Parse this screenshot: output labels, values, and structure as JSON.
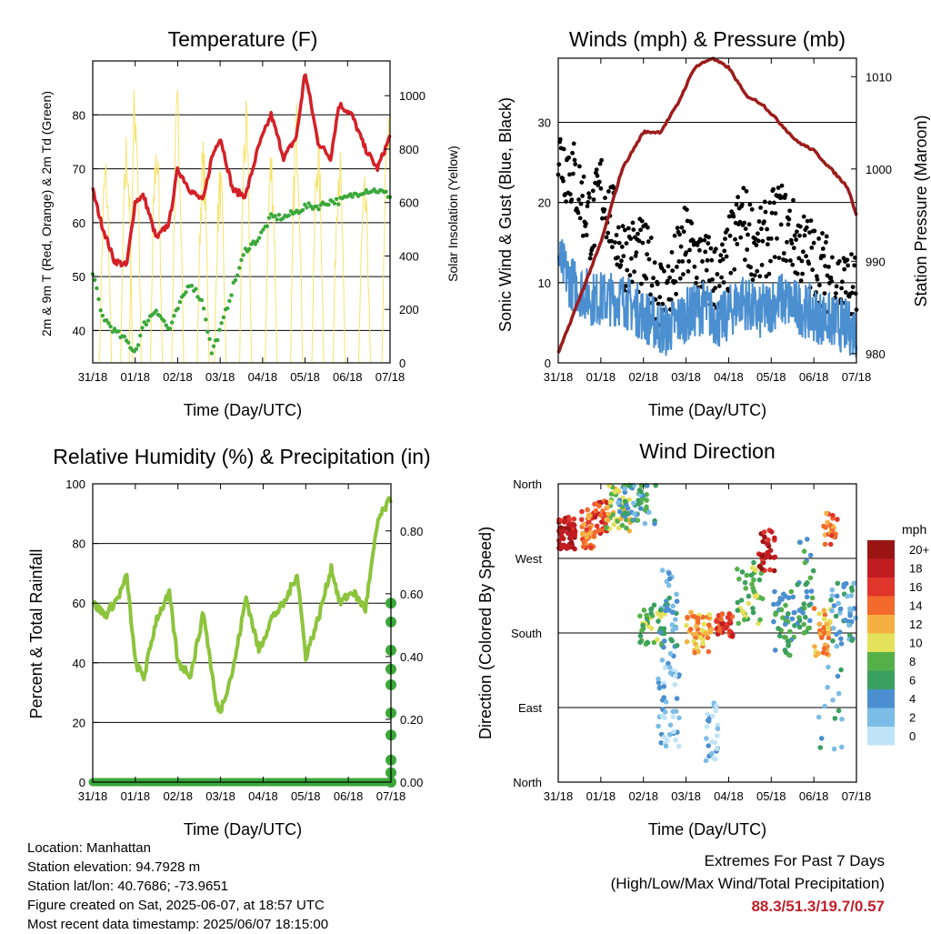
{
  "charts": {
    "temperature": {
      "title": "Temperature (F)",
      "xlabel": "Time (Day/UTC)",
      "ylabel_left": "2m & 9m T (Red, Orange) & 2m Td (Green)",
      "ylabel_right": "Solar Insolation (Yellow)"
    },
    "winds": {
      "title": "Winds (mph) & Pressure (mb)",
      "xlabel": "Time (Day/UTC)",
      "ylabel_left": "Sonic Wind & Gust (Blue, Black)",
      "ylabel_right": "Station Pressure (Maroon)"
    },
    "humidity": {
      "title": "Relative Humidity (%) & Precipitation (in)",
      "xlabel": "Time (Day/UTC)",
      "ylabel_left": "Percent & Total Rainfall"
    },
    "direction": {
      "title": "Wind Direction",
      "xlabel": "Time (Day/UTC)",
      "ylabel_left": "Direction (Colored By Speed)",
      "legend_title": "mph"
    }
  },
  "footer": {
    "location": "Location: Manhattan",
    "elevation": "Station elevation: 94.7928 m",
    "latlon": "Station lat/lon: 40.7686; -73.9651",
    "created": "Figure created on Sat, 2025-06-07, at 18:57 UTC",
    "recent": "Most recent data timestamp: 2025/06/07 18:15:00"
  },
  "extremes": {
    "line1": "Extremes For Past 7 Days",
    "line2": "(High/Low/Max Wind/Total Precipitation)",
    "values": "88.3/51.3/19.7/0.57"
  },
  "colors": {
    "temp_red": "#d42027",
    "dewpoint_green": "#3aa83a",
    "solar_yellow": "#f7e36a",
    "gust_black": "#000000",
    "wind_blue": "#4b8fd0",
    "pressure_maroon": "#9c1c1c",
    "rh_green": "#8cc43c",
    "precip_green": "#3aa83a",
    "speed_scale": [
      "#bfe4f7",
      "#7bbde6",
      "#4b8fd0",
      "#3aa060",
      "#55b04a",
      "#e4e15a",
      "#f5b044",
      "#f26a2c",
      "#e0352b",
      "#c01c22",
      "#9a1414"
    ]
  },
  "chart_data": [
    {
      "type": "line",
      "panel": "temperature",
      "x_ticks": [
        "31/18",
        "01/18",
        "02/18",
        "03/18",
        "04/18",
        "05/18",
        "06/18",
        "07/18"
      ],
      "ylim_left": [
        34,
        90
      ],
      "ylim_right": [
        0,
        1130
      ],
      "y_ticks_left": [
        "40",
        "50",
        "60",
        "70",
        "80"
      ],
      "y_ticks_right": [
        "0",
        "200",
        "400",
        "600",
        "800",
        "1000"
      ],
      "series": [
        {
          "color": "temp_red",
          "x": [
            0,
            0.2,
            0.5,
            0.8,
            1.0,
            1.2,
            1.5,
            1.8,
            2.0,
            2.3,
            2.6,
            2.8,
            3.0,
            3.3,
            3.6,
            3.9,
            4.2,
            4.5,
            4.8,
            5.0,
            5.3,
            5.6,
            5.8,
            6.1,
            6.4,
            6.7,
            7.0
          ],
          "values": [
            66,
            60,
            53,
            52,
            64,
            65,
            57,
            60,
            70,
            66,
            64,
            72,
            76,
            66,
            65,
            74,
            80,
            72,
            76,
            88,
            75,
            72,
            82,
            80,
            74,
            70,
            76
          ]
        },
        {
          "color": "dewpoint_green",
          "x": [
            0,
            0.2,
            0.5,
            0.8,
            1.0,
            1.2,
            1.5,
            1.8,
            2.0,
            2.3,
            2.6,
            2.8,
            3.0,
            3.3,
            3.6,
            3.9,
            4.2,
            4.5,
            4.8,
            5.0,
            5.3,
            5.6,
            5.8,
            6.1,
            6.4,
            6.7,
            7.0
          ],
          "values": [
            51,
            43,
            40,
            38,
            36,
            41,
            44,
            40,
            44,
            49,
            45,
            36,
            40,
            48,
            55,
            57,
            61,
            61,
            62,
            63,
            63,
            64,
            64,
            65,
            66,
            66,
            65
          ]
        },
        {
          "color": "solar_yellow",
          "axis": "right",
          "x": [
            0,
            0.3,
            0.5,
            0.8,
            1.0,
            1.2,
            1.5,
            1.8,
            2.0,
            2.3,
            2.6,
            2.8,
            3.0,
            3.3,
            3.6,
            3.9,
            4.2,
            4.5,
            4.8,
            5.0,
            5.3,
            5.6,
            5.8,
            6.1,
            6.4,
            6.7,
            7.0
          ],
          "values": [
            0,
            800,
            0,
            900,
            1100,
            0,
            900,
            0,
            1050,
            0,
            850,
            0,
            750,
            0,
            1000,
            0,
            650,
            0,
            1000,
            0,
            900,
            0,
            850,
            0,
            700,
            0,
            400
          ]
        }
      ]
    },
    {
      "type": "scatter",
      "panel": "winds",
      "x_ticks": [
        "31/18",
        "01/18",
        "02/18",
        "03/18",
        "04/18",
        "05/18",
        "06/18",
        "07/18"
      ],
      "ylim_left": [
        0,
        38
      ],
      "ylim_right": [
        979,
        1012
      ],
      "y_ticks_left": [
        "0",
        "10",
        "20",
        "30"
      ],
      "y_ticks_right": [
        "980",
        "990",
        "1000",
        "1010"
      ],
      "series": [
        {
          "color": "pressure_maroon",
          "axis": "right",
          "x": [
            0,
            0.5,
            1.0,
            1.5,
            2.0,
            2.4,
            2.8,
            3.2,
            3.6,
            4.0,
            4.4,
            4.8,
            5.2,
            5.6,
            6.0,
            6.4,
            6.8,
            7.0
          ],
          "values": [
            980,
            986,
            992,
            1000,
            1004,
            1004,
            1007,
            1011,
            1012,
            1011,
            1008,
            1007,
            1005,
            1003,
            1002,
            1000,
            998,
            995
          ]
        }
      ]
    },
    {
      "type": "line",
      "panel": "humidity",
      "x_ticks": [
        "31/18",
        "01/18",
        "02/18",
        "03/18",
        "04/18",
        "05/18",
        "06/18",
        "07/18"
      ],
      "ylim_left": [
        0,
        100
      ],
      "ylim_right": [
        0,
        0.95
      ],
      "y_ticks_left": [
        "0",
        "20",
        "40",
        "60",
        "80",
        "100"
      ],
      "y_ticks_right": [
        "0.00",
        "0.20",
        "0.40",
        "0.60",
        "0.80"
      ],
      "series": [
        {
          "color": "rh_green",
          "x": [
            0,
            0.3,
            0.6,
            0.8,
            1.0,
            1.2,
            1.5,
            1.8,
            2.0,
            2.3,
            2.6,
            2.9,
            3.0,
            3.3,
            3.6,
            3.9,
            4.2,
            4.5,
            4.8,
            5.0,
            5.3,
            5.6,
            5.8,
            6.1,
            6.4,
            6.7,
            7.0
          ],
          "values": [
            60,
            56,
            62,
            69,
            40,
            35,
            55,
            63,
            40,
            36,
            57,
            26,
            24,
            38,
            62,
            44,
            55,
            60,
            70,
            42,
            55,
            72,
            60,
            64,
            58,
            88,
            95
          ]
        },
        {
          "color": "precip_green",
          "axis": "right",
          "x": [
            7.0,
            7.0,
            7.0,
            7.0,
            7.0,
            7.0,
            7.0,
            7.0,
            7.0,
            7.0
          ],
          "values": [
            0.0,
            0.03,
            0.07,
            0.15,
            0.22,
            0.31,
            0.36,
            0.42,
            0.51,
            0.57
          ]
        }
      ]
    },
    {
      "type": "scatter",
      "panel": "direction",
      "x_ticks": [
        "31/18",
        "01/18",
        "02/18",
        "03/18",
        "04/18",
        "05/18",
        "06/18",
        "07/18"
      ],
      "y_ticks_left": [
        "North",
        "East",
        "South",
        "West",
        "North"
      ],
      "legend_labels": [
        "0",
        "2",
        "4",
        "6",
        "8",
        "10",
        "12",
        "14",
        "16",
        "18",
        "20+"
      ]
    }
  ]
}
